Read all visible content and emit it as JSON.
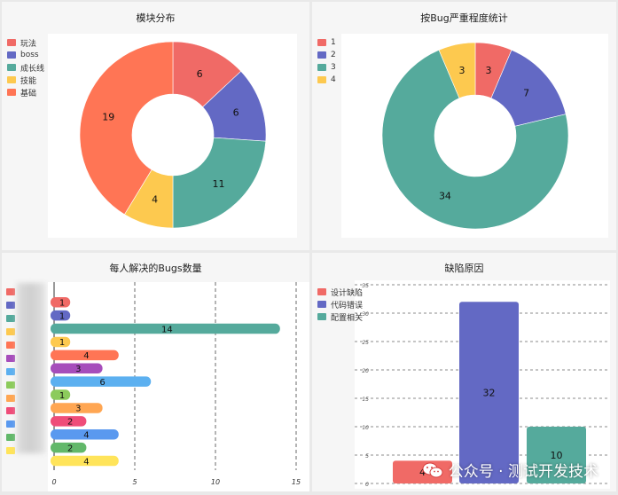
{
  "chart_data": [
    {
      "type": "pie",
      "title": "模块分布",
      "categories": [
        "玩法",
        "boss",
        "成长线",
        "技能",
        "基础"
      ],
      "values": [
        6,
        6,
        11,
        4,
        19
      ],
      "colors": [
        "#f06a66",
        "#6369c4",
        "#55aa9c",
        "#fdc94f",
        "#ff7555"
      ],
      "legend": "top-left"
    },
    {
      "type": "pie",
      "title": "按Bug严重程度统计",
      "categories": [
        "1",
        "2",
        "3",
        "4"
      ],
      "values": [
        3,
        7,
        34,
        3
      ],
      "colors": [
        "#f06a66",
        "#6369c4",
        "#55aa9c",
        "#fdc94f"
      ],
      "legend": "top-left"
    },
    {
      "type": "bar",
      "orientation": "horizontal",
      "title": "每人解决的Bugs数量",
      "values": [
        1,
        1,
        14,
        1,
        4,
        3,
        6,
        1,
        3,
        2,
        4,
        2,
        4
      ],
      "colors": [
        "#f06a66",
        "#6369c4",
        "#55aa9c",
        "#fdc94f",
        "#ff7555",
        "#a64dbb",
        "#5cb0f0",
        "#8ccb5c",
        "#ffa652",
        "#ef4d79",
        "#5a99ef",
        "#62b86a",
        "#ffe45a"
      ],
      "xlim": [
        0,
        15
      ],
      "xticks": [
        "0",
        "5",
        "10",
        "15"
      ],
      "grid": true,
      "legend": "left"
    },
    {
      "type": "bar",
      "title": "缺陷原因",
      "categories": [
        "设计缺陷",
        "代码错误",
        "配置相关"
      ],
      "values": [
        4,
        32,
        10
      ],
      "colors": [
        "#f06a66",
        "#6369c4",
        "#55aa9c"
      ],
      "ylim": [
        0,
        35
      ],
      "yticks": [
        "0",
        "5",
        "10",
        "15",
        "20",
        "25",
        "30",
        "35"
      ],
      "grid": true,
      "legend": "top-left"
    }
  ],
  "watermark": "公众号 · 测试开发技术"
}
